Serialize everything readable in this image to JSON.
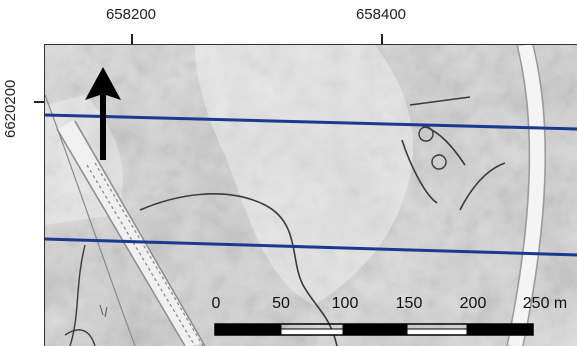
{
  "axes": {
    "easting_labels": [
      "658200",
      "658400"
    ],
    "northing_labels": [
      "6620200"
    ]
  },
  "scale_bar": {
    "labels": [
      "0",
      "50",
      "100",
      "150",
      "200",
      "250 m"
    ],
    "segment_colors": [
      "#000000",
      "#ffffff",
      "#000000",
      "#ffffff",
      "#000000"
    ]
  },
  "legend_colors": {
    "survey_line": "#1a3a8f",
    "contour_line": "#3a3a3a",
    "north_arrow": "#000000"
  },
  "icons": {
    "north_arrow": "north-arrow-icon"
  }
}
